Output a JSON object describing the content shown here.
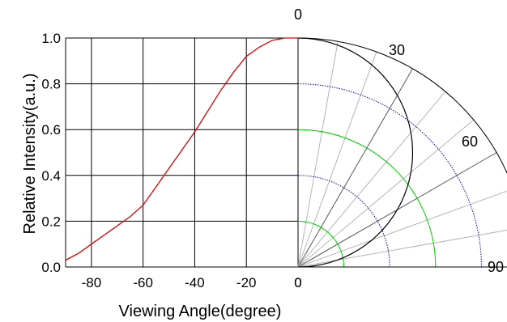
{
  "chart_data": {
    "type": "line",
    "title": "",
    "xlabel": "Viewing Angle(degree)",
    "ylabel": "Relative Intensity(a.u.)",
    "xlim": [
      -90,
      0
    ],
    "ylim": [
      0,
      1.0
    ],
    "grid": true,
    "x_ticks": [
      -80,
      -60,
      -40,
      -20,
      0
    ],
    "y_ticks": [
      0.0,
      0.2,
      0.4,
      0.6,
      0.8,
      1.0
    ],
    "x_tick_labels": [
      "-80",
      "-60",
      "-40",
      "-20",
      "0"
    ],
    "y_tick_labels": [
      "0.0",
      "0.2",
      "0.4",
      "0.6",
      "0.8",
      "1.0"
    ],
    "series": [
      {
        "color": "#e00000",
        "x": [
          -90,
          -85,
          -80,
          -75,
          -70,
          -65,
          -60,
          -55,
          -50,
          -45,
          -40,
          -35,
          -30,
          -25,
          -20,
          -15,
          -10,
          -5,
          0
        ],
        "y": [
          0.03,
          0.06,
          0.1,
          0.14,
          0.18,
          0.22,
          0.27,
          0.35,
          0.43,
          0.51,
          0.59,
          0.68,
          0.77,
          0.85,
          0.92,
          0.96,
          0.99,
          1.0,
          1.0
        ]
      }
    ],
    "polar": {
      "angle_labels": [
        "0",
        "30",
        "60",
        "90"
      ],
      "zero_label": "0",
      "radial_rings": [
        0.2,
        0.4,
        0.6,
        0.8,
        1.0
      ],
      "ring_colors": {
        "0.2": "#00cc00",
        "0.4": "#0000cc",
        "0.6": "#00cc00",
        "0.8": "#0000cc",
        "1.0": "#000000"
      },
      "spokes_deg": [
        10,
        20,
        30,
        40,
        50,
        60,
        70,
        80
      ],
      "pattern_color": "#000000"
    }
  }
}
